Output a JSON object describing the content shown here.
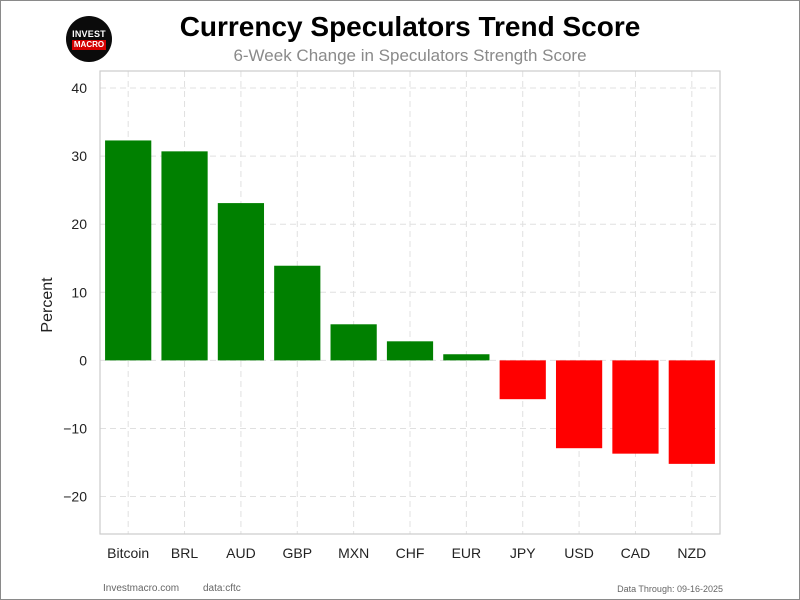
{
  "header": {
    "title": "Currency Speculators Trend Score",
    "subtitle": "6-Week Change in Speculators Strength Score",
    "logo_line1": "INVEST",
    "logo_line2": "MACRO"
  },
  "footer": {
    "site": "Investmacro.com",
    "source": "data:cftc",
    "data_through": "Data Through: 09-16-2025"
  },
  "chart_data": {
    "type": "bar",
    "title": "Currency Speculators Trend Score",
    "subtitle": "6-Week Change in Speculators Strength Score",
    "xlabel": "",
    "ylabel": "Percent",
    "categories": [
      "Bitcoin",
      "BRL",
      "AUD",
      "GBP",
      "MXN",
      "CHF",
      "EUR",
      "JPY",
      "USD",
      "CAD",
      "NZD"
    ],
    "values": [
      32.3,
      30.7,
      23.1,
      13.9,
      5.3,
      2.8,
      0.9,
      -5.7,
      -12.9,
      -13.7,
      -15.2
    ],
    "ylim": [
      -25.5,
      42.5
    ],
    "yticks": [
      -20,
      -10,
      0,
      10,
      20,
      30,
      40
    ],
    "ytick_labels": [
      "−20",
      "−10",
      "0",
      "10",
      "20",
      "30",
      "40"
    ],
    "grid": true,
    "colors": {
      "positive": "#008000",
      "negative": "#ff0000",
      "grid": "#e0e0e0",
      "axes": "#cccccc"
    }
  }
}
